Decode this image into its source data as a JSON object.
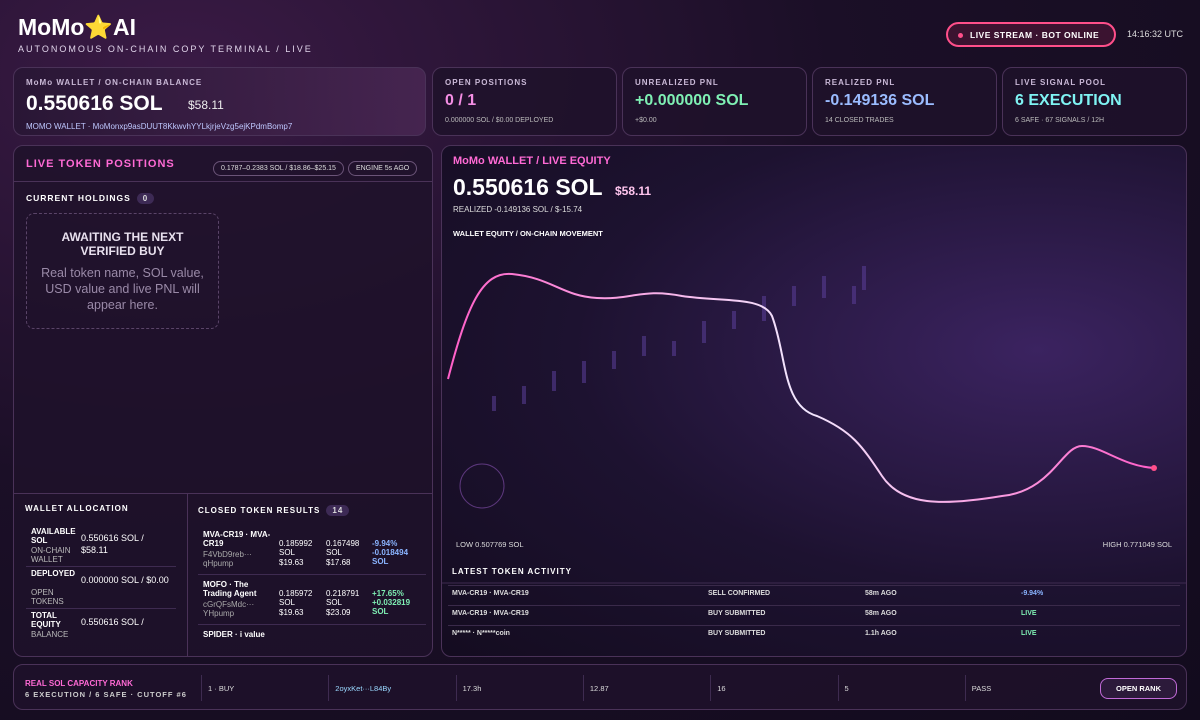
{
  "header": {
    "brand": "MoMo⭐AI",
    "subtitle": "AUTONOMOUS ON-CHAIN COPY TERMINAL / LIVE",
    "status": "LIVE STREAM · BOT ONLINE",
    "time": "14:16:32 UTC"
  },
  "wallet": {
    "label": "MoMo WALLET / ON-CHAIN BALANCE",
    "value": "0.550616 SOL",
    "usd": "$58.11",
    "address": "MOMO WALLET · MoMonxp9asDUUT8KkwvhYYLkjrjeVzg5ejKPdmBomp7"
  },
  "cards": [
    {
      "label": "OPEN POSITIONS",
      "value": "0 / 1",
      "sub": "0.000000 SOL / $0.00 DEPLOYED"
    },
    {
      "label": "UNREALIZED PNL",
      "value": "+0.000000 SOL",
      "sub": "+$0.00"
    },
    {
      "label": "REALIZED PNL",
      "value": "-0.149136 SOL",
      "sub": "14 CLOSED TRADES"
    },
    {
      "label": "LIVE SIGNAL POOL",
      "value": "6 EXECUTION",
      "sub": "6 SAFE · 67 SIGNALS / 12H"
    }
  ],
  "positions": {
    "title": "LIVE TOKEN POSITIONS",
    "chips": [
      "0.1787–0.2383 SOL / $18.86–$25.15",
      "ENGINE 5s AGO"
    ],
    "holdings_label": "CURRENT HOLDINGS",
    "holdings_count": "0",
    "empty_title": "AWAITING THE NEXT VERIFIED BUY",
    "empty_text": "Real token name, SOL value, USD value and live PNL will appear here."
  },
  "allocation": {
    "title": "WALLET ALLOCATION",
    "rows": [
      {
        "label": "AVAILABLE SOL",
        "sub": "ON-CHAIN WALLET",
        "value": "0.550616 SOL / $58.11"
      },
      {
        "label": "DEPLOYED",
        "sub": "OPEN TOKENS",
        "value": "0.000000 SOL / $0.00"
      },
      {
        "label": "TOTAL EQUITY",
        "sub": "BALANCE",
        "value": "0.550616 SOL /"
      }
    ]
  },
  "closed": {
    "title": "CLOSED TOKEN RESULTS",
    "count": "14",
    "rows": [
      {
        "name": "MVA-CR19 · MVA-CR19",
        "addr": "F4VbD9reb··· qHpump",
        "entry_sol": "0.185992 SOL",
        "entry_usd": "$19.63",
        "exit_sol": "0.167498 SOL",
        "exit_usd": "$17.68",
        "pnl_pct": "-9.94%",
        "pnl_sol": "-0.018494 SOL"
      },
      {
        "name": "MOFO · The Trading Agent",
        "addr": "cGrQFsMdc··· YHpump",
        "entry_sol": "0.185972 SOL",
        "entry_usd": "$19.63",
        "exit_sol": "0.218791 SOL",
        "exit_usd": "$23.09",
        "pnl_pct": "+17.65%",
        "pnl_sol": "+0.032819 SOL"
      },
      {
        "name": "SPIDER · i value"
      }
    ]
  },
  "equity": {
    "title": "MoMo WALLET / LIVE EQUITY",
    "value": "0.550616 SOL",
    "usd": "$58.11",
    "realized": "REALIZED -0.149136 SOL / $-15.74",
    "chart_label": "WALLET EQUITY / ON-CHAIN MOVEMENT",
    "low": "LOW 0.507769 SOL",
    "high": "HIGH 0.771049 SOL"
  },
  "activity": {
    "title": "LATEST TOKEN ACTIVITY",
    "rows": [
      [
        "MVA-CR19 · MVA-CR19",
        "SELL CONFIRMED",
        "58m AGO",
        "-9.94%"
      ],
      [
        "MVA-CR19 · MVA-CR19",
        "BUY SUBMITTED",
        "58m AGO",
        "LIVE"
      ],
      [
        "N***** · N*****coin",
        "BUY SUBMITTED",
        "1.1h AGO",
        "LIVE"
      ]
    ]
  },
  "rank": {
    "title": "REAL SOL CAPACITY RANK",
    "sub": "6 EXECUTION / 6 SAFE · CUTOFF #6",
    "cells": [
      "1 · BUY",
      "2oyxKet···L84By",
      "17.3h",
      "12.87",
      "16",
      "5",
      "PASS"
    ],
    "button": "OPEN RANK"
  }
}
